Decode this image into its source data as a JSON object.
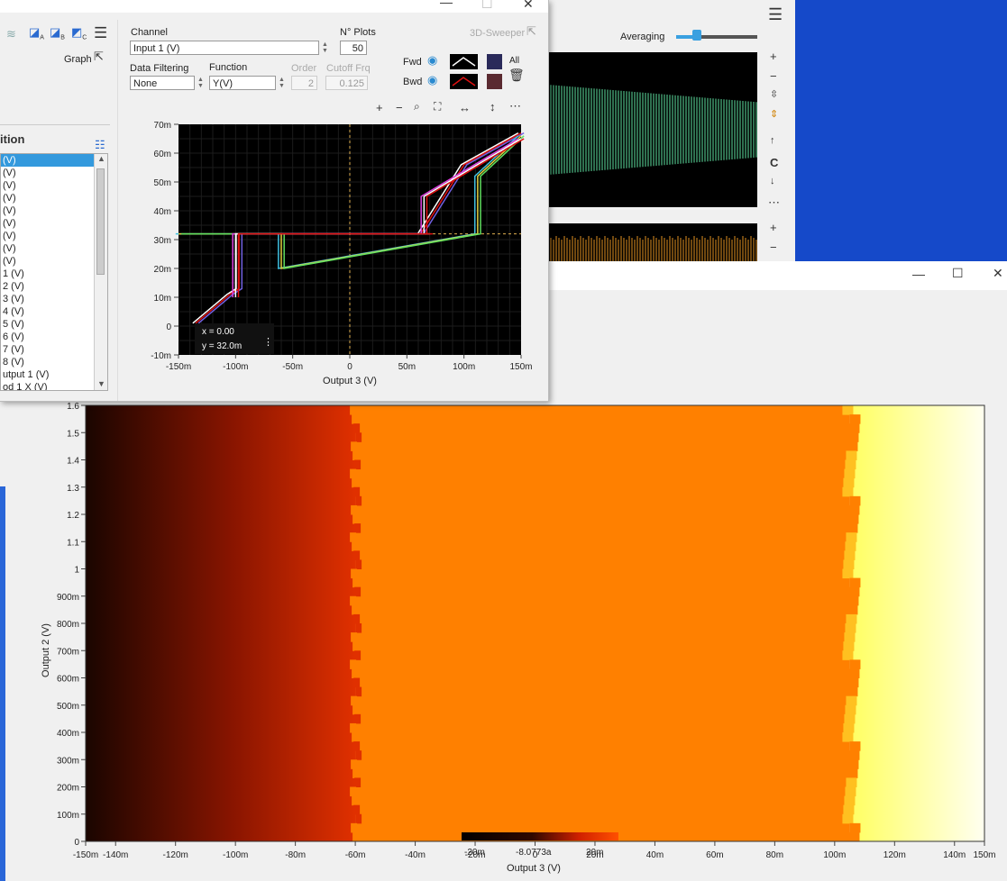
{
  "right_window": {
    "averaging_label": "Averaging",
    "averaging_value": 0.25,
    "side_c": "C"
  },
  "front_window": {
    "channel_label": "Channel",
    "channel_value": "Input 1 (V)",
    "nplots_label": "N° Plots",
    "nplots_value": "50",
    "sweeper_label": "3D-Sweeper",
    "graph_label": "Graph",
    "data_filtering_label": "Data Filtering",
    "data_filtering_value": "None",
    "function_label": "Function",
    "function_value": "Y(V)",
    "order_label": "Order",
    "order_value": "2",
    "cutoff_label": "Cutoff Frq",
    "cutoff_value": "0.125",
    "fwd_label": "Fwd",
    "bwd_label": "Bwd",
    "all_label": "All",
    "list_title": "ition",
    "list_items": [
      " (V)",
      " (V)",
      " (V)",
      " (V)",
      " (V)",
      " (V)",
      " (V)",
      " (V)",
      " (V)",
      " 1 (V)",
      " 2 (V)",
      " 3 (V)",
      " 4 (V)",
      " 5 (V)",
      " 6 (V)",
      " 7 (V)",
      " 8 (V)",
      "utput 1 (V)",
      "od 1 X (V)",
      "od 1 Y (V)"
    ],
    "readout_x": "x = 0.00",
    "readout_y": "y = 32.0m",
    "colors": {
      "fwd_swatch": "#2a2a5a",
      "bwd_swatch": "#5a2a30",
      "selected": "#3399dd"
    }
  },
  "chart_data": [
    {
      "type": "line",
      "xlabel": "Output 3 (V)",
      "ylabel": "",
      "xlim": [
        -0.15,
        0.15
      ],
      "ylim": [
        -0.01,
        0.07
      ],
      "x_ticks": [
        "-150m",
        "-100m",
        "-50m",
        "0",
        "50m",
        "100m",
        "150m"
      ],
      "y_ticks": [
        "70m",
        "60m",
        "50m",
        "40m",
        "30m",
        "20m",
        "10m",
        "0",
        "-10m"
      ],
      "cursor": {
        "x": 0,
        "y": 0.032
      },
      "series": [
        {
          "x": [
            -0.135,
            -0.105,
            -0.097,
            -0.097,
            0.06,
            0.062,
            0.1,
            0.15
          ],
          "y": [
            0.001,
            0.011,
            0.013,
            0.032,
            0.032,
            0.032,
            0.056,
            0.067
          ]
        },
        {
          "x": [
            -0.15,
            -0.06,
            -0.06,
            0.112,
            0.112,
            0.15
          ],
          "y": [
            0.032,
            0.032,
            0.02,
            0.032,
            0.052,
            0.066
          ]
        },
        {
          "x": [
            -0.1,
            -0.1,
            0.07,
            0.065,
            0.065,
            0.15
          ],
          "y": [
            0.01,
            0.032,
            0.032,
            0.032,
            0.045,
            0.065
          ]
        }
      ]
    },
    {
      "type": "heatmap",
      "xlabel": "Output 3 (V)",
      "ylabel": "Output 2 (V)",
      "xlim": [
        -0.15,
        0.15
      ],
      "ylim": [
        0,
        1.6
      ],
      "x_ticks": [
        "-150m",
        "-140m",
        "-120m",
        "-100m",
        "-80m",
        "-60m",
        "-40m",
        "-20m",
        "0",
        "20m",
        "40m",
        "60m",
        "80m",
        "100m",
        "120m",
        "140m",
        "150m"
      ],
      "y_ticks": [
        "1.6",
        "1.5",
        "1.4",
        "1.3",
        "1.2",
        "1.1",
        "1",
        "900m",
        "800m",
        "700m",
        "600m",
        "500m",
        "400m",
        "300m",
        "200m",
        "100m",
        "0"
      ],
      "colorbar_labels": [
        "-20m",
        "-8.0773a",
        "20m"
      ],
      "boundary_left_x": -0.06,
      "boundary_right_x": 0.105,
      "colors": {
        "dark": "#1a0500",
        "red": "#e03000",
        "orange": "#ff8000",
        "yellow": "#ffff60",
        "pale": "#fffff0"
      }
    }
  ]
}
